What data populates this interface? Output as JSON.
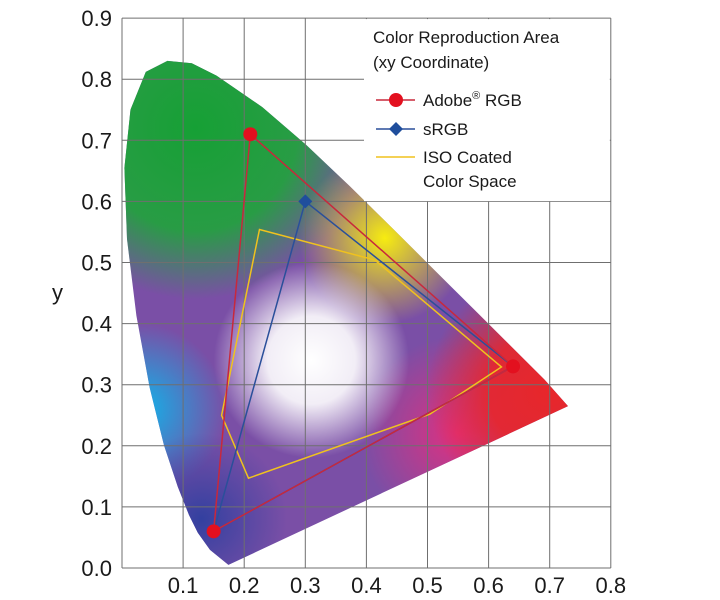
{
  "chart_data": {
    "type": "line",
    "title": "",
    "xlabel": "",
    "ylabel": "y",
    "xlim": [
      0,
      0.8
    ],
    "ylim": [
      0,
      0.9
    ],
    "x_ticks": [
      "0.1",
      "0.2",
      "0.3",
      "0.4",
      "0.5",
      "0.6",
      "0.7",
      "0.8"
    ],
    "y_ticks": [
      "0.0",
      "0.1",
      "0.2",
      "0.3",
      "0.4",
      "0.5",
      "0.6",
      "0.7",
      "0.8",
      "0.9"
    ],
    "grid": true,
    "legend": {
      "position": "top-right",
      "title_line1": "Color Reproduction Area",
      "title_line2": "(xy Coordinate)"
    },
    "series": [
      {
        "name": "Adobe® RGB",
        "name_base": "Adobe",
        "name_sup": "®",
        "name_rest": " RGB",
        "color": "#c8283c",
        "marker": "circle",
        "marker_color": "#e3101f",
        "points": [
          [
            0.64,
            0.33
          ],
          [
            0.21,
            0.71
          ],
          [
            0.15,
            0.06
          ]
        ]
      },
      {
        "name": "sRGB",
        "color": "#2a4f9a",
        "marker": "diamond",
        "marker_color": "#1f4e9c",
        "points": [
          [
            0.64,
            0.33
          ],
          [
            0.3,
            0.6
          ],
          [
            0.15,
            0.06
          ]
        ]
      },
      {
        "name": "ISO Coated Color Space",
        "name_line1": "ISO Coated",
        "name_line2": "Color Space",
        "color": "#f0c21e",
        "marker": "none",
        "points": [
          [
            0.225,
            0.554
          ],
          [
            0.414,
            0.504
          ],
          [
            0.621,
            0.329
          ],
          [
            0.504,
            0.252
          ],
          [
            0.207,
            0.147
          ],
          [
            0.163,
            0.25
          ]
        ]
      }
    ],
    "spectral_locus": [
      [
        0.1741,
        0.005
      ],
      [
        0.144,
        0.0297
      ],
      [
        0.1241,
        0.0578
      ],
      [
        0.1096,
        0.0868
      ],
      [
        0.0913,
        0.1327
      ],
      [
        0.0687,
        0.2007
      ],
      [
        0.0454,
        0.295
      ],
      [
        0.0235,
        0.4127
      ],
      [
        0.0082,
        0.5384
      ],
      [
        0.0039,
        0.6548
      ],
      [
        0.0139,
        0.7502
      ],
      [
        0.0389,
        0.812
      ],
      [
        0.0743,
        0.83
      ],
      [
        0.1142,
        0.8262
      ],
      [
        0.1547,
        0.8059
      ],
      [
        0.2296,
        0.7543
      ],
      [
        0.3016,
        0.6923
      ],
      [
        0.3731,
        0.6245
      ],
      [
        0.4441,
        0.5547
      ],
      [
        0.5125,
        0.4866
      ],
      [
        0.5752,
        0.4242
      ],
      [
        0.627,
        0.3725
      ],
      [
        0.6915,
        0.3083
      ],
      [
        0.73,
        0.265
      ]
    ]
  }
}
